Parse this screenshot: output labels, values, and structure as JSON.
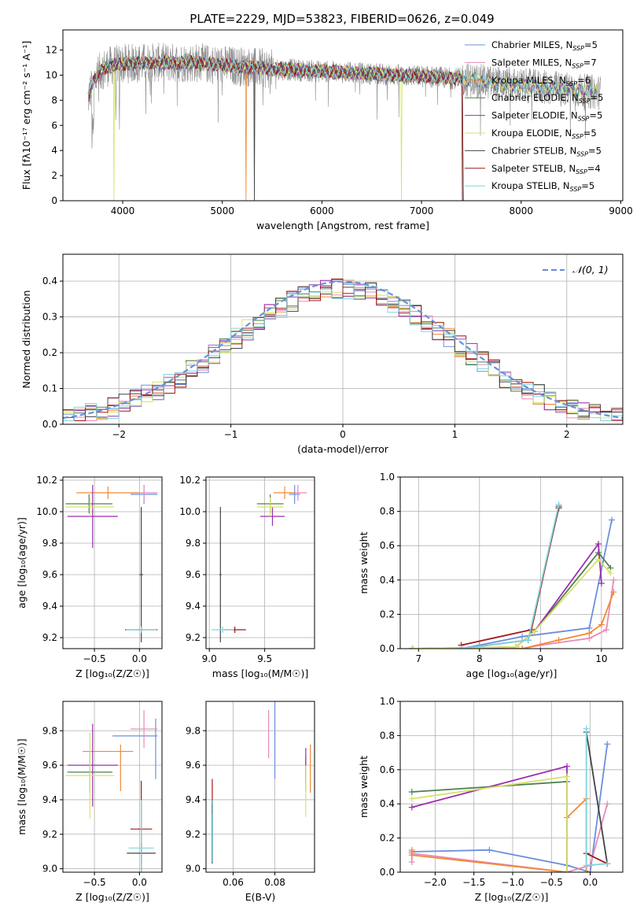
{
  "figure_title": "PLATE=2229, MJD=53823, FIBERID=0626, z=0.049",
  "colors": {
    "Chabrier MILES": "#6b8fdc",
    "Salpeter MILES": "#e78ab8",
    "Kroupa MILES": "#f08a35",
    "Chabrier ELODIE": "#4f7f4f",
    "Salpeter ELODIE": "#9b2fb0",
    "Kroupa ELODIE": "#d6e36a",
    "Chabrier STELIB": "#444444",
    "Salpeter STELIB": "#a01818",
    "Kroupa STELIB": "#7fd6de",
    "observed": "#8a8a8a",
    "gaussian": "#6b8fdc",
    "grid": "#b0b0b0"
  },
  "chart_data": [
    {
      "id": "spectrum",
      "type": "line",
      "title": "PLATE=2229, MJD=53823, FIBERID=0626, z=0.049",
      "xlabel": "wavelength [Angstrom, rest frame]",
      "ylabel": "Flux [fλ10⁻¹⁷ erg cm⁻² s⁻¹ A⁻¹]",
      "xlim": [
        3400,
        9020
      ],
      "ylim": [
        0,
        13.6
      ],
      "xticks": [
        4000,
        5000,
        6000,
        7000,
        8000,
        9000
      ],
      "yticks": [
        0,
        2,
        4,
        6,
        8,
        10,
        12
      ],
      "grid": false,
      "legend_position": "right",
      "legend": [
        {
          "name": "Chabrier MILES",
          "nssp": "5"
        },
        {
          "name": "Salpeter MILES",
          "nssp": "7"
        },
        {
          "name": "Kroupa MILES",
          "nssp": "6"
        },
        {
          "name": "Chabrier ELODIE",
          "nssp": "5"
        },
        {
          "name": "Salpeter ELODIE",
          "nssp": "5"
        },
        {
          "name": "Kroupa ELODIE",
          "nssp": "5"
        },
        {
          "name": "Chabrier STELIB",
          "nssp": "5"
        },
        {
          "name": "Salpeter STELIB",
          "nssp": "4"
        },
        {
          "name": "Kroupa STELIB",
          "nssp": "5"
        }
      ],
      "continuum": [
        [
          3650,
          8.0
        ],
        [
          3700,
          9.5
        ],
        [
          3800,
          10.5
        ],
        [
          3900,
          10.8
        ],
        [
          4000,
          10.9
        ],
        [
          4300,
          11.0
        ],
        [
          4700,
          11.0
        ],
        [
          5000,
          10.8
        ],
        [
          5500,
          10.5
        ],
        [
          6000,
          10.3
        ],
        [
          6500,
          10.1
        ],
        [
          7000,
          9.9
        ],
        [
          7400,
          9.7
        ],
        [
          7800,
          9.3
        ],
        [
          8300,
          9.0
        ],
        [
          8800,
          8.6
        ]
      ],
      "model_cut": {
        "Kroupa ELODIE": [
          3910,
          6800
        ],
        "Kroupa MILES": [
          5240,
          7410
        ],
        "Chabrier STELIB": [
          5320,
          7410
        ]
      }
    },
    {
      "id": "residuals",
      "type": "histogram",
      "xlabel": "(data-model)/error",
      "ylabel": "Normed distribution",
      "xlim": [
        -2.5,
        2.5
      ],
      "ylim": [
        0,
        0.475
      ],
      "xticks": [
        -2,
        -1,
        0,
        1,
        2
      ],
      "yticks": [
        0.0,
        0.1,
        0.2,
        0.3,
        0.4
      ],
      "bin_width": 0.1,
      "grid": true,
      "legend": [
        "𝒩(0, 1)"
      ],
      "legend_position": "upper right",
      "gaussian": {
        "mean": 0,
        "sigma": 1
      }
    },
    {
      "id": "age_vs_Z",
      "type": "errorbar",
      "xlabel": "Z [log₁₀(Z/Z☉)]",
      "ylabel": "age  [log₁₀(age/yr)]",
      "xlim": [
        -0.85,
        0.25
      ],
      "ylim": [
        9.13,
        10.22
      ],
      "xticks": [
        -0.5,
        0.0
      ],
      "yticks": [
        9.2,
        9.4,
        9.6,
        9.8,
        10.0,
        10.2
      ],
      "points": [
        {
          "series": "Chabrier MILES",
          "x": 0.05,
          "xerr": 0.15,
          "y": 10.11,
          "yerr": 0.06
        },
        {
          "series": "Salpeter MILES",
          "x": 0.05,
          "xerr": 0.15,
          "y": 10.12,
          "yerr": 0.05
        },
        {
          "series": "Kroupa MILES",
          "x": -0.35,
          "xerr": 0.35,
          "y": 10.12,
          "yerr": 0.04
        },
        {
          "series": "Chabrier ELODIE",
          "x": -0.56,
          "xerr": 0.26,
          "y": 10.05,
          "yerr": 0.06
        },
        {
          "series": "Salpeter ELODIE",
          "x": -0.52,
          "xerr": 0.28,
          "y": 9.97,
          "yerr": 0.2
        },
        {
          "series": "Kroupa ELODIE",
          "x": -0.55,
          "xerr": 0.27,
          "y": 10.03,
          "yerr": 0.06
        },
        {
          "series": "Chabrier STELIB",
          "x": 0.02,
          "xerr": 0.02,
          "y": 9.6,
          "yerr": 0.43
        },
        {
          "series": "Salpeter STELIB",
          "x": 0.02,
          "xerr": 0.18,
          "y": 9.25,
          "yerr": 0.02
        },
        {
          "series": "Kroupa STELIB",
          "x": 0.02,
          "xerr": 0.17,
          "y": 9.25,
          "yerr": 0.02
        }
      ]
    },
    {
      "id": "age_vs_mass",
      "type": "errorbar",
      "xlabel": "mass [log₁₀(M/M☉)]",
      "ylabel": "",
      "xlim": [
        8.97,
        9.95
      ],
      "ylim": [
        9.13,
        10.22
      ],
      "xticks": [
        9.0,
        9.5
      ],
      "yticks": [
        9.2,
        9.4,
        9.6,
        9.8,
        10.0,
        10.2
      ],
      "points": [
        {
          "series": "Chabrier MILES",
          "x": 9.77,
          "xerr": 0.05,
          "y": 10.11,
          "yerr": 0.06
        },
        {
          "series": "Salpeter MILES",
          "x": 9.8,
          "xerr": 0.08,
          "y": 10.12,
          "yerr": 0.05
        },
        {
          "series": "Kroupa MILES",
          "x": 9.68,
          "xerr": 0.1,
          "y": 10.12,
          "yerr": 0.04
        },
        {
          "series": "Chabrier ELODIE",
          "x": 9.55,
          "xerr": 0.12,
          "y": 10.05,
          "yerr": 0.06
        },
        {
          "series": "Salpeter ELODIE",
          "x": 9.57,
          "xerr": 0.11,
          "y": 9.97,
          "yerr": 0.06
        },
        {
          "series": "Kroupa ELODIE",
          "x": 9.55,
          "xerr": 0.12,
          "y": 10.03,
          "yerr": 0.06
        },
        {
          "series": "Chabrier STELIB",
          "x": 9.1,
          "xerr": 0.01,
          "y": 9.6,
          "yerr": 0.43
        },
        {
          "series": "Salpeter STELIB",
          "x": 9.23,
          "xerr": 0.1,
          "y": 9.25,
          "yerr": 0.02
        },
        {
          "series": "Kroupa STELIB",
          "x": 9.12,
          "xerr": 0.1,
          "y": 9.25,
          "yerr": 0.02
        }
      ]
    },
    {
      "id": "weight_vs_age",
      "type": "line",
      "xlabel": "age  [log₁₀(age/yr)]",
      "ylabel": "mass weight",
      "xlim": [
        6.7,
        10.35
      ],
      "ylim": [
        0,
        1.0
      ],
      "xticks": [
        7,
        8,
        9,
        10
      ],
      "yticks": [
        0.0,
        0.2,
        0.4,
        0.6,
        0.8,
        1.0
      ],
      "series": [
        {
          "name": "Chabrier MILES",
          "x": [
            6.9,
            7.7,
            8.0,
            8.7,
            9.8,
            10.17
          ],
          "y": [
            0.0,
            0.0,
            0.02,
            0.07,
            0.12,
            0.75
          ]
        },
        {
          "name": "Salpeter MILES",
          "x": [
            6.9,
            8.7,
            9.0,
            9.8,
            10.08,
            10.2
          ],
          "y": [
            0.0,
            0.0,
            0.02,
            0.06,
            0.11,
            0.4
          ]
        },
        {
          "name": "Kroupa MILES",
          "x": [
            6.9,
            8.7,
            9.3,
            9.8,
            10.0,
            10.2
          ],
          "y": [
            0.0,
            0.0,
            0.05,
            0.09,
            0.14,
            0.33
          ]
        },
        {
          "name": "Chabrier ELODIE",
          "x": [
            6.9,
            7.7,
            8.6,
            8.9,
            9.95,
            10.15
          ],
          "y": [
            0.0,
            0.0,
            0.01,
            0.1,
            0.56,
            0.47
          ]
        },
        {
          "name": "Salpeter ELODIE",
          "x": [
            6.9,
            8.6,
            8.9,
            9.95,
            10.0
          ],
          "y": [
            0.0,
            0.01,
            0.1,
            0.61,
            0.38
          ]
        },
        {
          "name": "Kroupa ELODIE",
          "x": [
            6.9,
            8.6,
            8.9,
            9.95,
            10.15
          ],
          "y": [
            0.0,
            0.01,
            0.1,
            0.52,
            0.44
          ]
        },
        {
          "name": "Chabrier STELIB",
          "x": [
            7.7,
            8.8,
            9.3
          ],
          "y": [
            0.0,
            0.05,
            0.82
          ]
        },
        {
          "name": "Salpeter STELIB",
          "x": [
            7.7,
            8.85,
            9.3
          ],
          "y": [
            0.02,
            0.11,
            0.83
          ]
        },
        {
          "name": "Kroupa STELIB",
          "x": [
            7.7,
            8.8,
            9.3
          ],
          "y": [
            0.0,
            0.05,
            0.84
          ]
        }
      ]
    },
    {
      "id": "mass_vs_Z",
      "type": "errorbar",
      "xlabel": "Z [log₁₀(Z/Z☉)]",
      "ylabel": "mass [log₁₀(M/M☉)]",
      "xlim": [
        -0.85,
        0.25
      ],
      "ylim": [
        8.98,
        9.97
      ],
      "xticks": [
        -0.5,
        0.0
      ],
      "yticks": [
        9.0,
        9.2,
        9.4,
        9.6,
        9.8
      ],
      "points": [
        {
          "series": "Chabrier MILES",
          "x": -0.05,
          "xerr": 0.25,
          "y": 9.77,
          "yerr": 0.0,
          "y_lo": 9.52,
          "y_hi": 9.87,
          "x_at": 0.18
        },
        {
          "series": "Salpeter MILES",
          "x": 0.05,
          "xerr": 0.15,
          "y": 9.81,
          "yerr": 0.11
        },
        {
          "series": "Kroupa MILES",
          "x": -0.35,
          "xerr": 0.28,
          "y": 9.68,
          "yerr": 0.0,
          "y_lo": 9.45,
          "y_hi": 9.72,
          "x_at": -0.21
        },
        {
          "series": "Chabrier ELODIE",
          "x": -0.55,
          "xerr": 0.25,
          "y": 9.56,
          "yerr": 0.12
        },
        {
          "series": "Salpeter ELODIE",
          "x": -0.52,
          "xerr": 0.28,
          "y": 9.6,
          "yerr": 0.24
        },
        {
          "series": "Kroupa ELODIE",
          "x": -0.55,
          "xerr": 0.27,
          "y": 9.54,
          "yerr": 0.25
        },
        {
          "series": "Chabrier STELIB",
          "x": 0.02,
          "xerr": 0.16,
          "y": 9.09,
          "yerr": 0.06
        },
        {
          "series": "Salpeter STELIB",
          "x": 0.02,
          "xerr": 0.12,
          "y": 9.23,
          "yerr": 0.28,
          "x_at": 0.02
        },
        {
          "series": "Kroupa STELIB",
          "x": 0.02,
          "xerr": 0.14,
          "y": 9.12,
          "yerr": 0.28
        }
      ]
    },
    {
      "id": "mass_vs_ebv",
      "type": "errorbar",
      "xlabel": "E(B-V)",
      "ylabel": "",
      "xlim": [
        0.047,
        0.099
      ],
      "ylim": [
        8.98,
        9.97
      ],
      "xticks": [
        0.06,
        0.08
      ],
      "yticks": [
        9.0,
        9.2,
        9.4,
        9.6,
        9.8
      ],
      "points": [
        {
          "series": "Chabrier MILES",
          "x": 0.08,
          "xerr": 0,
          "y": 9.77,
          "yerr": 0.25
        },
        {
          "series": "Salpeter MILES",
          "x": 0.077,
          "xerr": 0,
          "y": 9.78,
          "yerr": 0.14
        },
        {
          "series": "Kroupa MILES",
          "x": 0.097,
          "xerr": 0,
          "y": 9.58,
          "yerr": 0.14
        },
        {
          "series": "Chabrier ELODIE",
          "x": 0.0948,
          "xerr": 0,
          "y": 9.55,
          "yerr": 0.1
        },
        {
          "series": "Salpeter ELODIE",
          "x": 0.0948,
          "xerr": 0,
          "y": 9.6,
          "yerr": 0.1
        },
        {
          "series": "Kroupa ELODIE",
          "x": 0.0948,
          "xerr": 0,
          "y": 9.45,
          "yerr": 0.15
        },
        {
          "series": "Chabrier STELIB",
          "x": 0.05,
          "xerr": 0,
          "y": 9.2,
          "yerr": 0.17
        },
        {
          "series": "Salpeter STELIB",
          "x": 0.05,
          "xerr": 0,
          "y": 9.42,
          "yerr": 0.1
        },
        {
          "series": "Kroupa STELIB",
          "x": 0.0502,
          "xerr": 0,
          "y": 9.22,
          "yerr": 0.18
        }
      ]
    },
    {
      "id": "weight_vs_Z",
      "type": "line",
      "xlabel": "Z [log₁₀(Z/Z☉)]",
      "ylabel": "mass weight",
      "xlim": [
        -2.45,
        0.42
      ],
      "ylim": [
        0,
        1.0
      ],
      "xticks": [
        -2.0,
        -1.5,
        -1.0,
        -0.5,
        0.0
      ],
      "yticks": [
        0.0,
        0.2,
        0.4,
        0.6,
        0.8,
        1.0
      ],
      "series": [
        {
          "name": "Chabrier MILES",
          "x": [
            -2.3,
            -1.3,
            -0.3,
            0.0,
            0.22
          ],
          "y": [
            0.12,
            0.13,
            0.04,
            0.0,
            0.75
          ]
        },
        {
          "name": "Salpeter MILES",
          "x": [
            -2.3,
            -2.3,
            -0.3,
            0.0,
            0.22
          ],
          "y": [
            0.06,
            0.11,
            0.0,
            0.04,
            0.4
          ]
        },
        {
          "name": "Kroupa MILES",
          "x": [
            -2.3,
            -2.3,
            -0.3,
            -0.3,
            -0.05,
            -0.05
          ],
          "y": [
            0.13,
            0.1,
            0.0,
            0.32,
            0.43,
            0.0
          ]
        },
        {
          "name": "Chabrier ELODIE",
          "x": [
            -2.3,
            -0.3,
            -0.3
          ],
          "y": [
            0.47,
            0.53,
            0.0
          ]
        },
        {
          "name": "Salpeter ELODIE",
          "x": [
            -2.3,
            -0.3,
            -0.3
          ],
          "y": [
            0.38,
            0.62,
            0.0
          ]
        },
        {
          "name": "Kroupa ELODIE",
          "x": [
            -2.3,
            -0.3,
            -0.3
          ],
          "y": [
            0.43,
            0.56,
            0.0
          ]
        },
        {
          "name": "Chabrier STELIB",
          "x": [
            -0.05,
            0.22
          ],
          "y": [
            0.82,
            0.05
          ]
        },
        {
          "name": "Salpeter STELIB",
          "x": [
            -0.05,
            0.22
          ],
          "y": [
            0.11,
            0.05
          ]
        },
        {
          "name": "Kroupa STELIB",
          "x": [
            -0.05,
            -0.05,
            0.22
          ],
          "y": [
            0.84,
            0.04,
            0.05
          ]
        }
      ]
    }
  ]
}
